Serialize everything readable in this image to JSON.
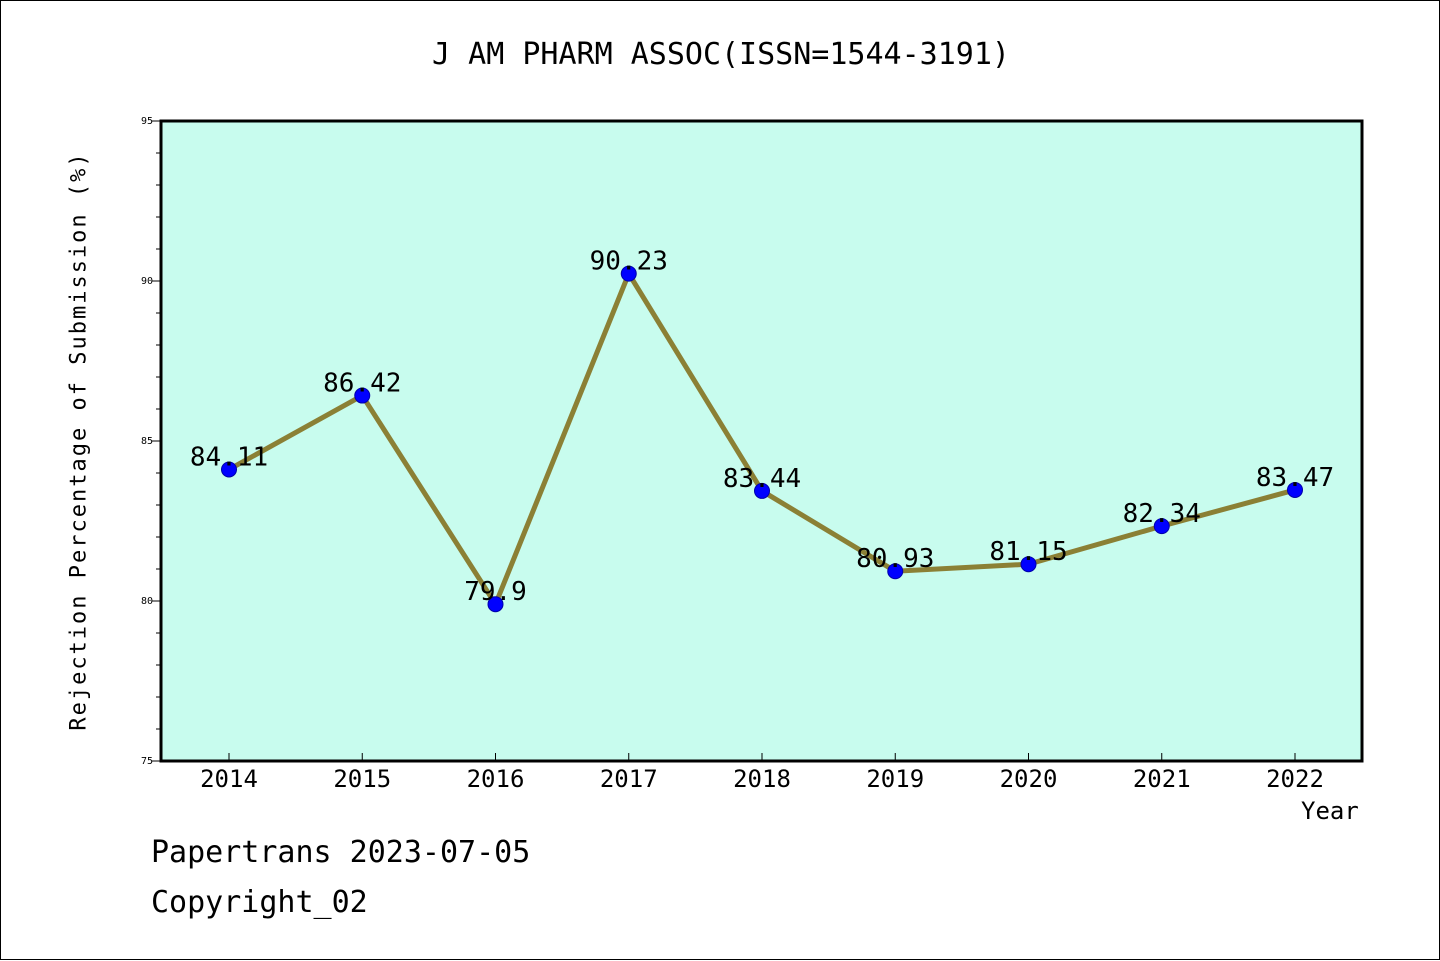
{
  "chart_data": {
    "type": "line",
    "title": "J AM PHARM ASSOC(ISSN=1544-3191)",
    "xlabel": "Year",
    "ylabel": "Rejection Percentage of Submission (%)",
    "categories": [
      "2014",
      "2015",
      "2016",
      "2017",
      "2018",
      "2019",
      "2020",
      "2021",
      "2022"
    ],
    "series": [
      {
        "values": [
          84.11,
          86.42,
          79.9,
          90.23,
          83.44,
          80.93,
          81.15,
          82.34,
          83.47
        ]
      }
    ],
    "data_labels": [
      "84.11",
      "86.42",
      "79.9",
      "90.23",
      "83.44",
      "80.93",
      "81.15",
      "82.34",
      "83.47"
    ],
    "ylim": [
      75,
      95
    ],
    "yticks": [
      75,
      80,
      85,
      90,
      95
    ],
    "grid": false,
    "colors": {
      "plot_background": "#c8fcee",
      "line": "#8b8035",
      "marker": "#0000ff"
    }
  },
  "footer": {
    "line1": "Papertrans 2023-07-05",
    "line2": "Copyright_02"
  }
}
